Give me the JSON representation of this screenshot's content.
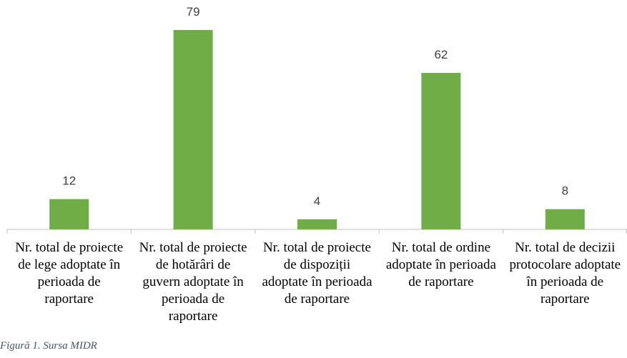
{
  "chart_data": {
    "type": "bar",
    "categories": [
      "Nr. total de proiecte de lege adoptate în perioada de raportare",
      "Nr. total de proiecte de hotărâri de guvern adoptate în perioada de raportare",
      "Nr. total de proiecte de dispoziții adoptate în perioada de raportare",
      "Nr. total de ordine adoptate în perioada de raportare",
      "Nr. total de decizii protocolare adoptate în perioada de raportare"
    ],
    "values": [
      12,
      79,
      4,
      62,
      8
    ],
    "color": "#70ad47"
  },
  "caption": "Figură 1. Sursa MIDR"
}
